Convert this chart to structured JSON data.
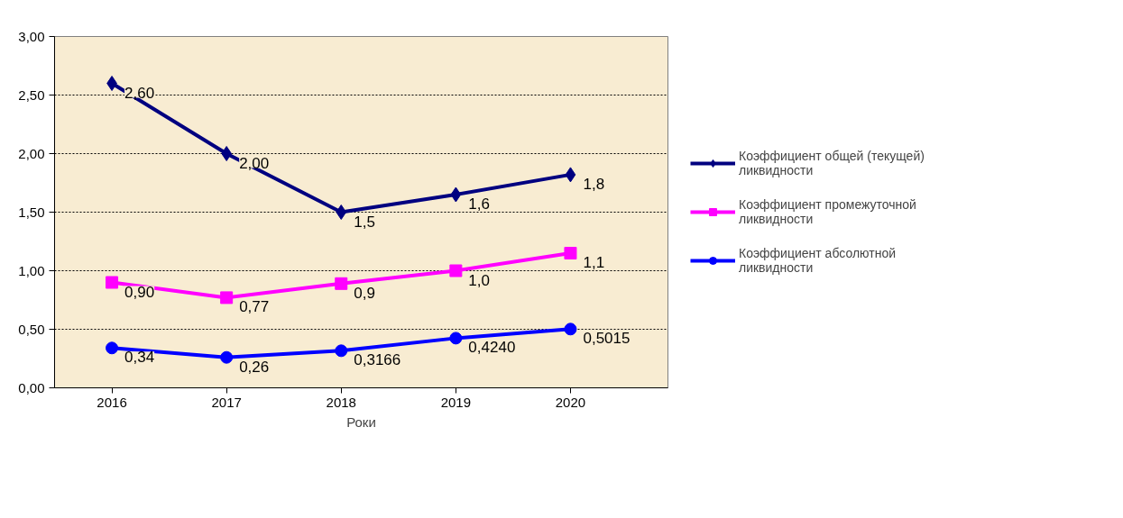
{
  "chart_data": {
    "type": "line",
    "xlabel": "Роки",
    "categories": [
      "2016",
      "2017",
      "2018",
      "2019",
      "2020"
    ],
    "series": [
      {
        "name": "Коэффициент общей (текущей) ликвидности",
        "color": "#000080",
        "marker": "diamond",
        "values": [
          2.6,
          2.0,
          1.5,
          1.65,
          1.82
        ],
        "value_labels": [
          "2,60",
          "2,00",
          "1,5",
          "1,6",
          "1,8"
        ]
      },
      {
        "name": "Коэффициент промежуточной ликвидности",
        "color": "#ff00ff",
        "marker": "square",
        "values": [
          0.9,
          0.77,
          0.89,
          1.0,
          1.15
        ],
        "value_labels": [
          "0,90",
          "0,77",
          "0,9",
          "1,0",
          "1,1"
        ]
      },
      {
        "name": "Коэффициент абсолютной ликвидности",
        "color": "#0000ff",
        "marker": "circle",
        "values": [
          0.34,
          0.26,
          0.3166,
          0.424,
          0.5015
        ],
        "value_labels": [
          "0,34",
          "0,26",
          "0,3166",
          "0,4240",
          "0,5015"
        ]
      }
    ],
    "ylim": [
      0,
      3
    ],
    "yticks": [
      {
        "value": 0,
        "label": "0,00"
      },
      {
        "value": 0.5,
        "label": "0,50"
      },
      {
        "value": 1,
        "label": "1,00"
      },
      {
        "value": 1.5,
        "label": "1,50"
      },
      {
        "value": 2,
        "label": "2,00"
      },
      {
        "value": 2.5,
        "label": "2,50"
      },
      {
        "value": 3,
        "label": "3,00"
      }
    ],
    "grid": "y",
    "legend": "right"
  }
}
